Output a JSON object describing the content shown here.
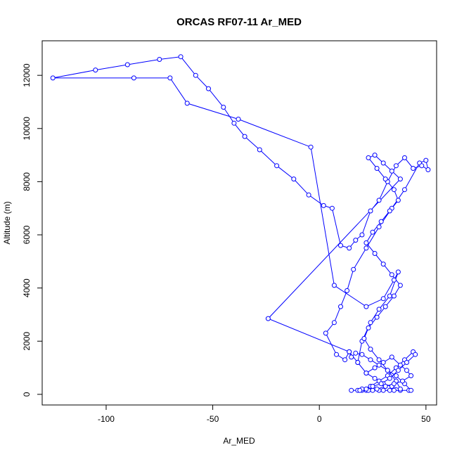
{
  "chart_data": {
    "type": "scatter",
    "title": "ORCAS RF07-11 Ar_MED",
    "xlabel": "Ar_MED",
    "ylabel": "Altitude (m)",
    "xlim": [
      -130,
      55
    ],
    "ylim": [
      -400,
      13300
    ],
    "xticks": [
      -100,
      -50,
      0,
      50
    ],
    "yticks": [
      0,
      2000,
      4000,
      6000,
      8000,
      10000,
      12000
    ],
    "grid": false,
    "legend": "none",
    "color": "#0000ff",
    "series": [
      {
        "mode": "lines+markers",
        "x": [
          15,
          18,
          20,
          22,
          25,
          28,
          30,
          33,
          35,
          38,
          42,
          43,
          40,
          36,
          32,
          28,
          24,
          20,
          17,
          15,
          14,
          12,
          8,
          3,
          7,
          10,
          13,
          16,
          22,
          28,
          34,
          40,
          47,
          50,
          51,
          48,
          44,
          40,
          36,
          32,
          28,
          24,
          20,
          17,
          14,
          10,
          6,
          2,
          -5,
          -12,
          -20,
          -28,
          -35,
          -40,
          -45,
          -52,
          -58,
          -65,
          -75,
          -90,
          -105,
          -125,
          -87,
          -70,
          -62,
          -38,
          -4,
          7,
          22,
          30,
          35,
          37,
          33,
          28,
          24,
          20,
          18,
          22,
          26,
          30,
          34,
          38,
          36,
          32,
          28,
          24,
          21,
          23,
          27,
          31,
          35,
          38,
          34,
          30,
          26,
          22,
          25,
          29,
          33,
          37,
          35,
          31,
          27,
          23,
          26,
          30,
          34,
          38,
          -24,
          14,
          18,
          22,
          26,
          30,
          34,
          38,
          41,
          43,
          39,
          35,
          31,
          27,
          23,
          20,
          24,
          28,
          32,
          36,
          40,
          44,
          45,
          41,
          37,
          33,
          29,
          25,
          22,
          19
        ],
        "y": [
          150,
          150,
          150,
          150,
          150,
          150,
          150,
          150,
          150,
          150,
          150,
          150,
          400,
          700,
          900,
          1100,
          1300,
          1500,
          1550,
          1400,
          1600,
          1300,
          1500,
          2300,
          2700,
          3300,
          3900,
          4700,
          5500,
          6300,
          7000,
          7700,
          8700,
          8800,
          8450,
          8600,
          8500,
          8900,
          8600,
          8000,
          7300,
          6900,
          6000,
          5800,
          5500,
          5600,
          7000,
          7100,
          7500,
          8100,
          8600,
          9200,
          9700,
          10200,
          10800,
          11500,
          12000,
          12700,
          12600,
          12400,
          12200,
          11900,
          11900,
          11900,
          10950,
          10350,
          9300,
          4100,
          3300,
          3600,
          4300,
          4600,
          3700,
          3200,
          2700,
          2000,
          1200,
          800,
          600,
          400,
          300,
          200,
          500,
          900,
          1300,
          1700,
          2100,
          2500,
          2900,
          3300,
          3700,
          4100,
          4500,
          4900,
          5300,
          5700,
          6100,
          6500,
          6900,
          7300,
          7700,
          8100,
          8500,
          8900,
          9000,
          8700,
          8400,
          8100,
          2850,
          1600,
          1200,
          800,
          1000,
          1200,
          1400,
          1100,
          900,
          700,
          500,
          400,
          300,
          200,
          150,
          200,
          300,
          500,
          700,
          1000,
          1300,
          1600,
          1500,
          1200,
          900,
          600,
          400,
          300,
          200,
          150
        ]
      }
    ]
  }
}
